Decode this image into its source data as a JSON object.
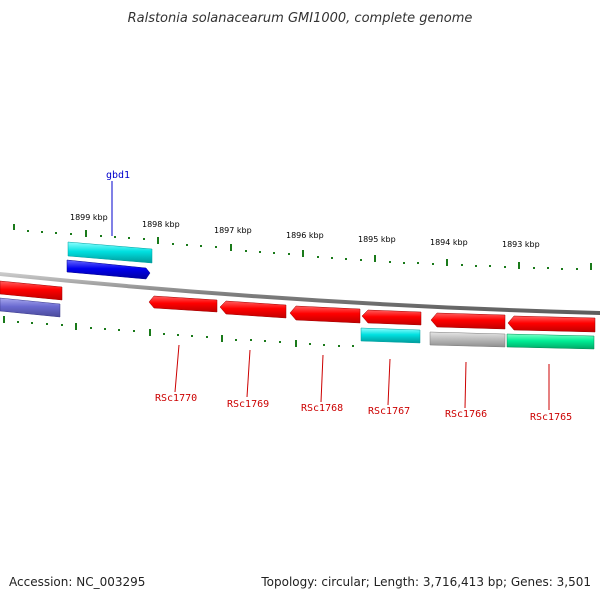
{
  "title": "Ralstonia solanacearum GMI1000, complete genome",
  "footer": {
    "accession": "Accession: NC_003295",
    "topology": "Topology: circular; Length: 3,716,413 bp; Genes: 3,501"
  },
  "scale_labels": [
    "1899 kbp",
    "1898 kbp",
    "1897 kbp",
    "1896 kbp",
    "1895 kbp",
    "1894 kbp",
    "1893 kbp"
  ],
  "gene_labels": {
    "gbd1": "gbd1",
    "RSc1770": "RSc1770",
    "RSc1769": "RSc1769",
    "RSc1768": "RSc1768",
    "RSc1767": "RSc1767",
    "RSc1766": "RSc1766",
    "RSc1765": "RSc1765"
  },
  "colors": {
    "backbone": "#808080",
    "ticks": "#1a7a1a",
    "red": "#ff0000",
    "cyan": "#00c8c8",
    "blue": "#0000e6",
    "slate": "#6a6ac8",
    "gray": "#b4b4b4",
    "green": "#00e08c",
    "label_red": "#cc0000",
    "label_blue": "#0000cc"
  }
}
